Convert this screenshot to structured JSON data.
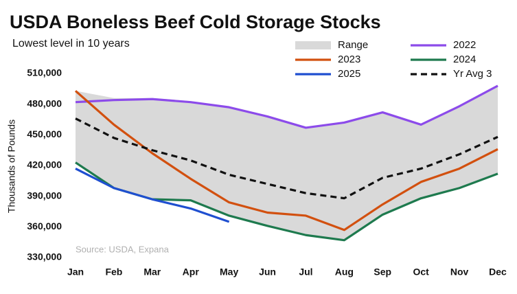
{
  "chart_data": {
    "type": "line",
    "title": "USDA Boneless Beef Cold Storage Stocks",
    "subtitle": "Lowest level in 10 years",
    "y_label": "Thousands of Pounds",
    "source": "Source: USDA, Expana",
    "categories": [
      "Jan",
      "Feb",
      "Mar",
      "Apr",
      "May",
      "Jun",
      "Jul",
      "Aug",
      "Sep",
      "Oct",
      "Nov",
      "Dec"
    ],
    "ylim": [
      330000,
      510000
    ],
    "yticks": [
      {
        "value": 330000,
        "label": "330,000"
      },
      {
        "value": 360000,
        "label": "360,000"
      },
      {
        "value": 390000,
        "label": "390,000"
      },
      {
        "value": 420000,
        "label": "420,000"
      },
      {
        "value": 450000,
        "label": "450,000"
      },
      {
        "value": 480000,
        "label": "480,000"
      },
      {
        "value": 510000,
        "label": "510,000"
      }
    ],
    "grid": false,
    "range": {
      "name": "Range",
      "color": "#d9d9d9",
      "high": [
        493000,
        486000,
        486000,
        483000,
        477000,
        468000,
        457000,
        462000,
        472000,
        460000,
        478000,
        498000
      ],
      "low": [
        423000,
        398000,
        387000,
        386000,
        371000,
        361000,
        352000,
        347000,
        372000,
        388000,
        398000,
        412000
      ]
    },
    "series": [
      {
        "name": "2022",
        "color": "#8c4bea",
        "values": [
          482000,
          484000,
          485000,
          482000,
          477000,
          468000,
          457000,
          462000,
          472000,
          460000,
          478000,
          498000
        ]
      },
      {
        "name": "2023",
        "color": "#d2500f",
        "values": [
          493000,
          460000,
          432000,
          407000,
          384000,
          374000,
          371000,
          357000,
          382000,
          404000,
          417000,
          436000
        ]
      },
      {
        "name": "2024",
        "color": "#1e7a4e",
        "values": [
          423000,
          398000,
          387000,
          386000,
          371000,
          361000,
          352000,
          347000,
          372000,
          388000,
          398000,
          412000
        ]
      },
      {
        "name": "2025",
        "color": "#1f4fd0",
        "values": [
          417000,
          398000,
          387000,
          378000,
          365000,
          null,
          null,
          null,
          null,
          null,
          null,
          null
        ]
      },
      {
        "name": "Yr Avg 3",
        "color": "#111111",
        "dashed": true,
        "values": [
          466000,
          447000,
          435000,
          425000,
          411000,
          402000,
          393000,
          388000,
          408000,
          417000,
          431000,
          448000
        ]
      }
    ]
  }
}
